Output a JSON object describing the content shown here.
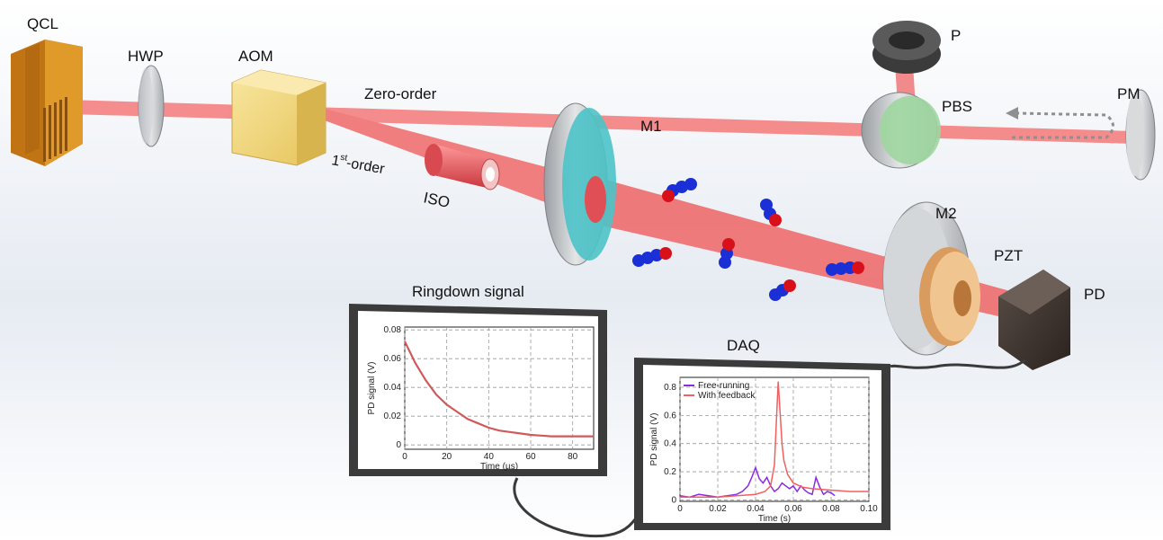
{
  "labels": {
    "qcl": "QCL",
    "hwp": "HWP",
    "aom": "AOM",
    "zero_order": "Zero-order",
    "first_order_num": "1",
    "first_order_sup": "st",
    "first_order_rest": "-order",
    "iso": "ISO",
    "m1": "M1",
    "p": "P",
    "pbs": "PBS",
    "pm": "PM",
    "m2": "M2",
    "pzt": "PZT",
    "pd": "PD",
    "ringdown_title": "Ringdown signal",
    "daq_title": "DAQ"
  },
  "colors": {
    "beam": "#f26b6b",
    "aom": "#f1d67a",
    "qcl": "#d98a16",
    "iso": "#e05a60",
    "m1_face": "#4cc3c8",
    "pbs_face": "#9ed6a0",
    "pzt": "#e8b47c",
    "molecule_n": "#1a2fd6",
    "molecule_o": "#d8101a",
    "free_running": "#8a2be2",
    "with_feedback": "#f06060"
  },
  "chart_data": [
    {
      "type": "line",
      "name_of_panel": "ringdown",
      "xlabel": "Time (µs)",
      "ylabel": "PD signal (V)",
      "xlim": [
        0,
        90
      ],
      "ylim": [
        -0.003,
        0.082
      ],
      "x_ticks": [
        0,
        20,
        40,
        60,
        80
      ],
      "y_ticks": [
        0,
        0.02,
        0.04,
        0.06,
        0.08
      ],
      "x_tick_labels": [
        "0",
        "20",
        "40",
        "60",
        "80"
      ],
      "y_tick_labels": [
        "0",
        "0.02",
        "0.04",
        "0.06",
        "0.08"
      ],
      "grid": true,
      "series": [
        {
          "x": [
            0,
            5,
            10,
            15,
            20,
            25,
            30,
            35,
            40,
            45,
            50,
            55,
            60,
            65,
            70,
            75,
            80,
            85,
            90
          ],
          "values": [
            0.072,
            0.057,
            0.045,
            0.035,
            0.028,
            0.023,
            0.018,
            0.015,
            0.012,
            0.01,
            0.009,
            0.008,
            0.007,
            0.0065,
            0.006,
            0.006,
            0.006,
            0.006,
            0.006
          ]
        }
      ]
    },
    {
      "type": "line",
      "name_of_panel": "daq",
      "xlabel": "Time (s)",
      "ylabel": "PD signal (V)",
      "xlim": [
        0,
        0.1
      ],
      "ylim": [
        -0.01,
        0.87
      ],
      "x_ticks": [
        0,
        0.02,
        0.04,
        0.06,
        0.08,
        0.1
      ],
      "y_ticks": [
        0,
        0.2,
        0.4,
        0.6,
        0.8
      ],
      "x_tick_labels": [
        "0",
        "0.02",
        "0.04",
        "0.06",
        "0.08",
        "0.10"
      ],
      "y_tick_labels": [
        "0",
        "0.2",
        "0.4",
        "0.6",
        "0.8"
      ],
      "grid": true,
      "legend": "top-left",
      "series": [
        {
          "name": "Free-running",
          "x": [
            0,
            0.005,
            0.01,
            0.015,
            0.02,
            0.025,
            0.03,
            0.033,
            0.036,
            0.038,
            0.04,
            0.042,
            0.044,
            0.046,
            0.048,
            0.05,
            0.052,
            0.054,
            0.056,
            0.058,
            0.06,
            0.062,
            0.064,
            0.066,
            0.068,
            0.07,
            0.072,
            0.074,
            0.076,
            0.078,
            0.08,
            0.082
          ],
          "values": [
            0.03,
            0.02,
            0.04,
            0.03,
            0.02,
            0.03,
            0.04,
            0.06,
            0.1,
            0.16,
            0.23,
            0.15,
            0.12,
            0.16,
            0.1,
            0.06,
            0.08,
            0.12,
            0.1,
            0.08,
            0.1,
            0.06,
            0.1,
            0.07,
            0.05,
            0.04,
            0.16,
            0.09,
            0.04,
            0.06,
            0.05,
            0.03
          ]
        },
        {
          "name": "With feedback",
          "x": [
            0,
            0.01,
            0.02,
            0.03,
            0.04,
            0.045,
            0.048,
            0.05,
            0.051,
            0.052,
            0.053,
            0.054,
            0.055,
            0.057,
            0.06,
            0.065,
            0.07,
            0.08,
            0.09,
            0.1
          ],
          "values": [
            0.02,
            0.02,
            0.02,
            0.03,
            0.04,
            0.06,
            0.1,
            0.25,
            0.55,
            0.84,
            0.62,
            0.4,
            0.28,
            0.18,
            0.12,
            0.09,
            0.08,
            0.07,
            0.06,
            0.06
          ]
        }
      ]
    }
  ]
}
